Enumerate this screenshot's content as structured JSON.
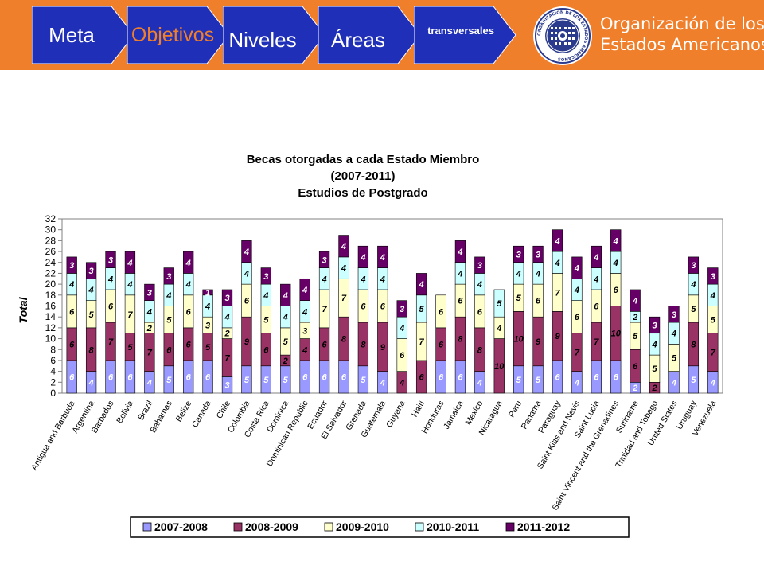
{
  "header": {
    "steps": [
      {
        "label": "Meta",
        "fill": "#1f2fb8",
        "text_color": "#ffffff"
      },
      {
        "label": "Objetivos",
        "fill": "#1f2fb8",
        "text_color": "#f07f2c"
      },
      {
        "label": "Niveles",
        "fill": "#1f2fb8",
        "text_color": "#ffffff"
      },
      {
        "label": "Áreas",
        "fill": "#1f2fb8",
        "text_color": "#ffffff"
      },
      {
        "label": "transversales",
        "fill": "#1f2fb8",
        "text_color": "#ffffff"
      }
    ],
    "org_name_line1": "Organización de los",
    "org_name_line2": "Estados Americanos",
    "seal_text": "ORGANIZACION DE LOS ESTADOS AMERICANOS",
    "bar_color": "#f07f2c"
  },
  "chart_data": {
    "type": "bar",
    "stacked": true,
    "title_lines": [
      "Becas otorgadas a cada Estado Miembro",
      "(2007-2011)",
      "Estudios de Postgrado"
    ],
    "xlabel": "",
    "ylabel": "Total",
    "ylim": [
      0,
      32
    ],
    "yticks": [
      0,
      2,
      4,
      6,
      8,
      10,
      12,
      14,
      16,
      18,
      20,
      22,
      24,
      26,
      28,
      30,
      32
    ],
    "grid": false,
    "legend_position": "bottom",
    "categories": [
      "Antigua and Barbuda",
      "Argentina",
      "Barbados",
      "Bolivia",
      "Brazil",
      "Bahamas",
      "Belize",
      "Canada",
      "Chile",
      "Colombia",
      "Costa Rica",
      "Dominica",
      "Dominican Republic",
      "Ecuador",
      "El Salvador",
      "Grenada",
      "Guatemala",
      "Guyana",
      "Haití",
      "Honduras",
      "Jamaica",
      "Mexico",
      "Nicaragua",
      "Peru",
      "Panama",
      "Paraguay",
      "Saint Kitts and Nevis",
      "Saint Lucia",
      "Saint Vincent and the Grenadines",
      "Suriname",
      "Trinidad and Tobago",
      "United States",
      "Uruguay",
      "Venezuela"
    ],
    "series": [
      {
        "name": "2007-2008",
        "color": "#9999ff",
        "label_color": "#ffffff",
        "values": [
          6,
          4,
          6,
          6,
          4,
          5,
          6,
          6,
          3,
          5,
          5,
          5,
          6,
          6,
          6,
          5,
          4,
          0,
          0,
          6,
          6,
          4,
          0,
          5,
          5,
          6,
          4,
          6,
          6,
          2,
          0,
          4,
          5,
          4
        ]
      },
      {
        "name": "2008-2009",
        "color": "#993366",
        "label_color": "#000000",
        "values": [
          6,
          8,
          7,
          5,
          7,
          6,
          6,
          5,
          7,
          9,
          6,
          2,
          4,
          6,
          8,
          8,
          9,
          4,
          6,
          6,
          8,
          8,
          10,
          10,
          9,
          9,
          7,
          7,
          10,
          6,
          2,
          0,
          8,
          7
        ]
      },
      {
        "name": "2009-2010",
        "color": "#ffffcc",
        "label_color": "#000000",
        "values": [
          6,
          5,
          6,
          7,
          2,
          5,
          6,
          3,
          2,
          6,
          5,
          5,
          3,
          7,
          7,
          6,
          6,
          6,
          7,
          6,
          6,
          6,
          4,
          5,
          6,
          7,
          6,
          6,
          6,
          5,
          5,
          5,
          5,
          5
        ]
      },
      {
        "name": "2010-2011",
        "color": "#ccffff",
        "label_color": "#000000",
        "values": [
          4,
          4,
          4,
          4,
          4,
          4,
          4,
          4,
          4,
          4,
          4,
          4,
          4,
          4,
          4,
          4,
          4,
          4,
          5,
          0,
          4,
          4,
          5,
          4,
          4,
          4,
          4,
          4,
          4,
          2,
          4,
          4,
          4,
          4
        ]
      },
      {
        "name": "2011-2012",
        "color": "#660066",
        "label_color": "#ffffff",
        "values": [
          3,
          3,
          3,
          4,
          3,
          3,
          4,
          1,
          3,
          4,
          3,
          4,
          4,
          3,
          4,
          4,
          4,
          3,
          4,
          0,
          4,
          3,
          0,
          3,
          3,
          4,
          4,
          4,
          4,
          4,
          3,
          3,
          3,
          3
        ]
      }
    ]
  }
}
